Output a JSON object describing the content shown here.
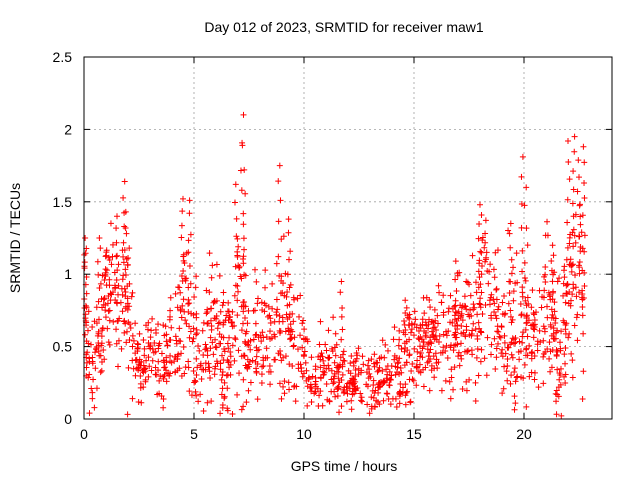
{
  "chart_data": {
    "type": "scatter",
    "title": "Day 012 of 2023, SRMTID for receiver maw1",
    "xlabel": "GPS time / hours",
    "ylabel": "SRMTID / TECUs",
    "xlim": [
      0,
      24
    ],
    "ylim": [
      0,
      2.5
    ],
    "xticks": [
      "0",
      "5",
      "10",
      "15",
      "20"
    ],
    "xtick_values": [
      0,
      5,
      10,
      15,
      20
    ],
    "yticks": [
      "0",
      "0.5",
      "1",
      "1.5",
      "2",
      "2.5"
    ],
    "ytick_values": [
      0,
      0.5,
      1,
      1.5,
      2,
      2.5
    ],
    "grid": true,
    "marker": "plus",
    "series": [
      {
        "name": "SRMTID",
        "color": "#ff0000",
        "description": "Approximate envelope of the dense scatter (hours, TECU); the plotted cloud is sampled from these values",
        "x": [
          0.0,
          0.25,
          0.5,
          0.75,
          1.0,
          1.25,
          1.5,
          1.75,
          2.0,
          2.25,
          2.5,
          2.75,
          3.0,
          3.25,
          3.5,
          3.75,
          4.0,
          4.25,
          4.5,
          4.75,
          5.0,
          5.25,
          5.5,
          5.75,
          6.0,
          6.25,
          6.5,
          6.75,
          7.0,
          7.25,
          7.5,
          7.75,
          8.0,
          8.25,
          8.5,
          8.75,
          9.0,
          9.25,
          9.5,
          9.75,
          10.0,
          10.25,
          10.5,
          10.75,
          11.0,
          11.25,
          11.5,
          11.75,
          12.0,
          12.25,
          12.5,
          12.75,
          13.0,
          13.25,
          13.5,
          13.75,
          14.0,
          14.25,
          14.5,
          14.75,
          15.0,
          15.25,
          15.5,
          15.75,
          16.0,
          16.25,
          16.5,
          16.75,
          17.0,
          17.25,
          17.5,
          17.75,
          18.0,
          18.25,
          18.5,
          18.75,
          19.0,
          19.25,
          19.5,
          19.75,
          20.0,
          20.25,
          20.5,
          20.75,
          21.0,
          21.25,
          21.5,
          21.75,
          22.0,
          22.25,
          22.5,
          22.75
        ],
        "mean": [
          0.85,
          0.4,
          0.35,
          0.55,
          0.95,
          0.85,
          0.7,
          0.75,
          0.8,
          0.45,
          0.4,
          0.35,
          0.45,
          0.4,
          0.35,
          0.4,
          0.55,
          0.6,
          0.75,
          0.65,
          0.5,
          0.45,
          0.55,
          0.6,
          0.6,
          0.45,
          0.4,
          0.55,
          0.8,
          0.6,
          0.45,
          0.55,
          0.5,
          0.6,
          0.55,
          0.7,
          0.75,
          0.6,
          0.55,
          0.5,
          0.45,
          0.25,
          0.2,
          0.35,
          0.3,
          0.35,
          0.3,
          0.3,
          0.25,
          0.25,
          0.3,
          0.28,
          0.25,
          0.25,
          0.3,
          0.3,
          0.35,
          0.3,
          0.35,
          0.5,
          0.45,
          0.45,
          0.55,
          0.5,
          0.5,
          0.55,
          0.6,
          0.55,
          0.6,
          0.6,
          0.6,
          0.65,
          0.85,
          0.9,
          0.9,
          0.7,
          0.6,
          0.8,
          0.6,
          0.55,
          0.55,
          0.6,
          0.6,
          0.65,
          0.7,
          0.75,
          0.5,
          0.55,
          0.8,
          0.9,
          1.0,
          0.9
        ],
        "spread": [
          0.3,
          0.25,
          0.3,
          0.3,
          0.3,
          0.35,
          0.35,
          0.3,
          0.5,
          0.2,
          0.2,
          0.2,
          0.2,
          0.2,
          0.2,
          0.2,
          0.25,
          0.3,
          0.4,
          0.45,
          0.4,
          0.3,
          0.3,
          0.35,
          0.35,
          0.3,
          0.25,
          0.4,
          0.55,
          0.5,
          0.3,
          0.35,
          0.3,
          0.35,
          0.35,
          0.35,
          0.45,
          0.35,
          0.35,
          0.3,
          0.3,
          0.2,
          0.15,
          0.2,
          0.2,
          0.25,
          0.2,
          0.2,
          0.15,
          0.15,
          0.15,
          0.15,
          0.15,
          0.15,
          0.15,
          0.2,
          0.25,
          0.2,
          0.25,
          0.3,
          0.25,
          0.25,
          0.25,
          0.25,
          0.25,
          0.3,
          0.3,
          0.3,
          0.3,
          0.3,
          0.3,
          0.35,
          0.4,
          0.45,
          0.45,
          0.3,
          0.35,
          0.45,
          0.4,
          0.35,
          0.35,
          0.35,
          0.35,
          0.35,
          0.4,
          0.4,
          0.35,
          0.4,
          0.5,
          0.55,
          0.5,
          0.5
        ],
        "peaks": [
          {
            "x": 0.05,
            "y": 1.25
          },
          {
            "x": 0.7,
            "y": 1.25
          },
          {
            "x": 1.5,
            "y": 1.4
          },
          {
            "x": 1.85,
            "y": 1.64
          },
          {
            "x": 1.9,
            "y": 1.43
          },
          {
            "x": 4.5,
            "y": 1.52
          },
          {
            "x": 4.8,
            "y": 1.51
          },
          {
            "x": 6.9,
            "y": 1.62
          },
          {
            "x": 7.2,
            "y": 1.89
          },
          {
            "x": 7.25,
            "y": 2.1
          },
          {
            "x": 8.9,
            "y": 1.75
          },
          {
            "x": 9.3,
            "y": 1.38
          },
          {
            "x": 11.7,
            "y": 0.95
          },
          {
            "x": 14.6,
            "y": 0.82
          },
          {
            "x": 16.9,
            "y": 1.09
          },
          {
            "x": 18.0,
            "y": 1.48
          },
          {
            "x": 19.4,
            "y": 1.35
          },
          {
            "x": 19.95,
            "y": 1.81
          },
          {
            "x": 20.1,
            "y": 1.6
          },
          {
            "x": 21.3,
            "y": 1.2
          },
          {
            "x": 22.0,
            "y": 1.92
          },
          {
            "x": 22.3,
            "y": 1.95
          },
          {
            "x": 22.7,
            "y": 1.88
          },
          {
            "x": 22.5,
            "y": 1.67
          }
        ]
      }
    ]
  }
}
